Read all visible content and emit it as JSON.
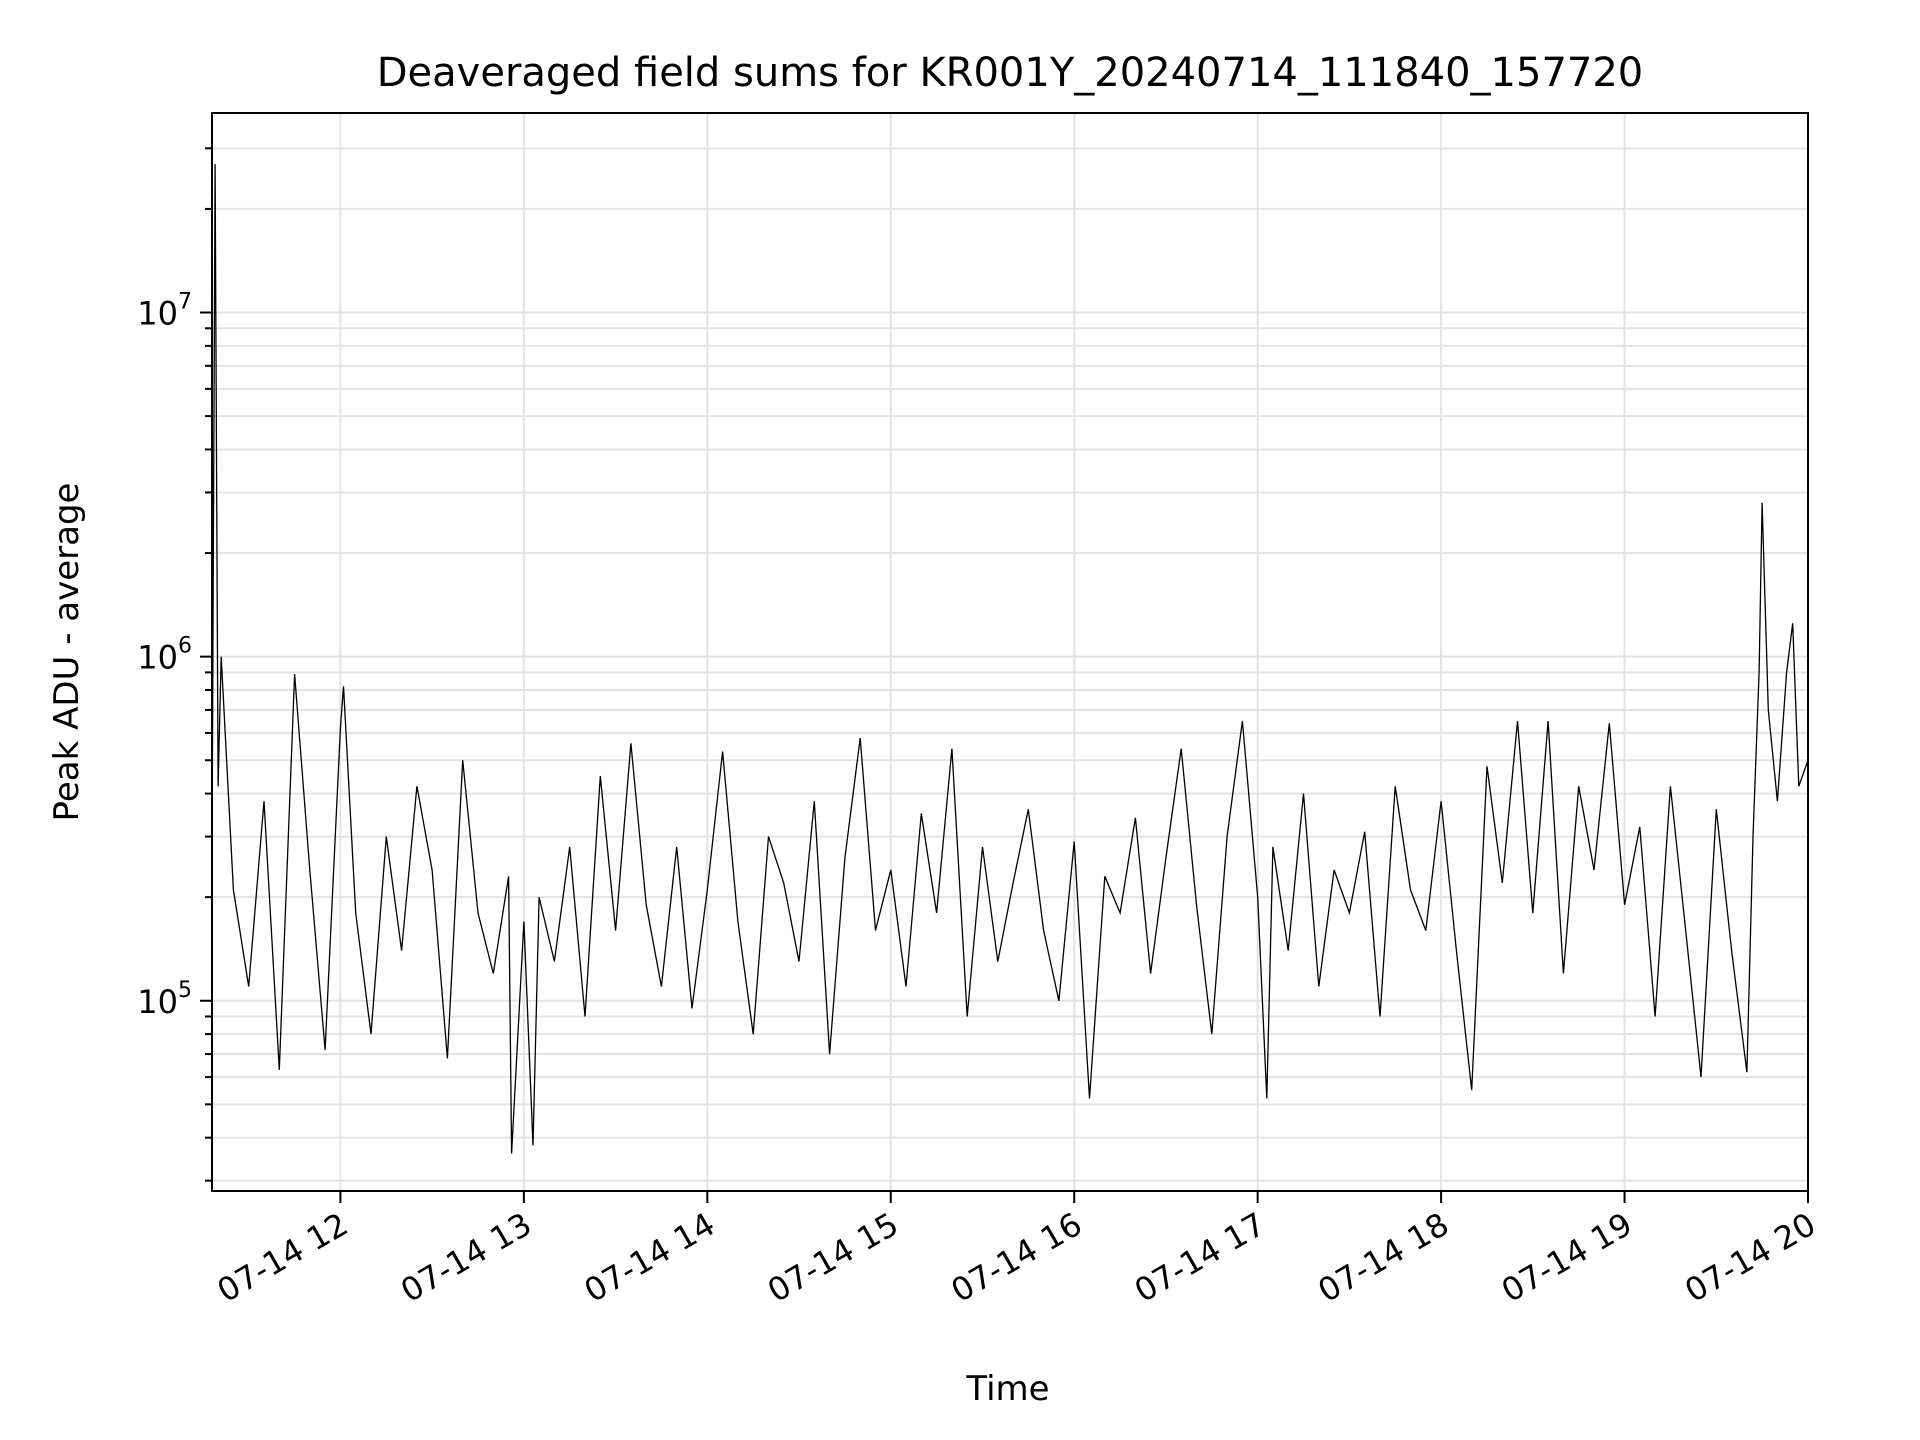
{
  "chart_data": {
    "type": "line",
    "title": "Deaveraged field sums for KR001Y_20240714_111840_157720",
    "xlabel": "Time",
    "ylabel": "Peak ADU - average",
    "x_range": [
      "07-14 11:18",
      "07-14 20:00"
    ],
    "y_range": [
      28000,
      38000000
    ],
    "y_scale": "log",
    "grid": true,
    "legend": "none",
    "line_color": "#000000",
    "x_ticks": [
      {
        "hour": 12,
        "label": "07-14 12"
      },
      {
        "hour": 13,
        "label": "07-14 13"
      },
      {
        "hour": 14,
        "label": "07-14 14"
      },
      {
        "hour": 15,
        "label": "07-14 15"
      },
      {
        "hour": 16,
        "label": "07-14 16"
      },
      {
        "hour": 17,
        "label": "07-14 17"
      },
      {
        "hour": 18,
        "label": "07-14 18"
      },
      {
        "hour": 19,
        "label": "07-14 19"
      },
      {
        "hour": 20,
        "label": "07-14 20"
      }
    ],
    "y_ticks": [
      {
        "value": 100000,
        "base": "10",
        "exp": "5"
      },
      {
        "value": 1000000,
        "base": "10",
        "exp": "6"
      },
      {
        "value": 10000000,
        "base": "10",
        "exp": "7"
      }
    ],
    "series": [
      {
        "points": [
          [
            "07-14 11:18",
            260000
          ],
          [
            "07-14 11:19",
            27000000
          ],
          [
            "07-14 11:20",
            420000
          ],
          [
            "07-14 11:21",
            1000000
          ],
          [
            "07-14 11:25",
            210000
          ],
          [
            "07-14 11:30",
            110000
          ],
          [
            "07-14 11:35",
            380000
          ],
          [
            "07-14 11:40",
            63000
          ],
          [
            "07-14 11:45",
            890000
          ],
          [
            "07-14 11:50",
            240000
          ],
          [
            "07-14 11:55",
            72000
          ],
          [
            "07-14 12:00",
            620000
          ],
          [
            "07-14 12:01",
            820000
          ],
          [
            "07-14 12:05",
            180000
          ],
          [
            "07-14 12:10",
            80000
          ],
          [
            "07-14 12:15",
            300000
          ],
          [
            "07-14 12:20",
            140000
          ],
          [
            "07-14 12:25",
            420000
          ],
          [
            "07-14 12:30",
            240000
          ],
          [
            "07-14 12:35",
            68000
          ],
          [
            "07-14 12:40",
            500000
          ],
          [
            "07-14 12:45",
            180000
          ],
          [
            "07-14 12:50",
            120000
          ],
          [
            "07-14 12:55",
            230000
          ],
          [
            "07-14 12:56",
            36000
          ],
          [
            "07-14 13:00",
            170000
          ],
          [
            "07-14 13:03",
            38000
          ],
          [
            "07-14 13:05",
            200000
          ],
          [
            "07-14 13:10",
            130000
          ],
          [
            "07-14 13:15",
            280000
          ],
          [
            "07-14 13:20",
            90000
          ],
          [
            "07-14 13:25",
            450000
          ],
          [
            "07-14 13:30",
            160000
          ],
          [
            "07-14 13:35",
            560000
          ],
          [
            "07-14 13:40",
            190000
          ],
          [
            "07-14 13:45",
            110000
          ],
          [
            "07-14 13:50",
            280000
          ],
          [
            "07-14 13:55",
            95000
          ],
          [
            "07-14 14:00",
            210000
          ],
          [
            "07-14 14:05",
            530000
          ],
          [
            "07-14 14:10",
            170000
          ],
          [
            "07-14 14:15",
            80000
          ],
          [
            "07-14 14:20",
            300000
          ],
          [
            "07-14 14:25",
            220000
          ],
          [
            "07-14 14:30",
            130000
          ],
          [
            "07-14 14:35",
            380000
          ],
          [
            "07-14 14:40",
            70000
          ],
          [
            "07-14 14:45",
            260000
          ],
          [
            "07-14 14:50",
            580000
          ],
          [
            "07-14 14:55",
            160000
          ],
          [
            "07-14 15:00",
            240000
          ],
          [
            "07-14 15:05",
            110000
          ],
          [
            "07-14 15:10",
            350000
          ],
          [
            "07-14 15:15",
            180000
          ],
          [
            "07-14 15:20",
            540000
          ],
          [
            "07-14 15:25",
            90000
          ],
          [
            "07-14 15:30",
            280000
          ],
          [
            "07-14 15:35",
            130000
          ],
          [
            "07-14 15:40",
            220000
          ],
          [
            "07-14 15:45",
            360000
          ],
          [
            "07-14 15:50",
            160000
          ],
          [
            "07-14 15:55",
            100000
          ],
          [
            "07-14 16:00",
            290000
          ],
          [
            "07-14 16:05",
            52000
          ],
          [
            "07-14 16:10",
            230000
          ],
          [
            "07-14 16:15",
            180000
          ],
          [
            "07-14 16:20",
            340000
          ],
          [
            "07-14 16:25",
            120000
          ],
          [
            "07-14 16:30",
            260000
          ],
          [
            "07-14 16:35",
            540000
          ],
          [
            "07-14 16:40",
            190000
          ],
          [
            "07-14 16:45",
            80000
          ],
          [
            "07-14 16:50",
            300000
          ],
          [
            "07-14 16:55",
            650000
          ],
          [
            "07-14 17:00",
            200000
          ],
          [
            "07-14 17:03",
            52000
          ],
          [
            "07-14 17:05",
            280000
          ],
          [
            "07-14 17:10",
            140000
          ],
          [
            "07-14 17:15",
            400000
          ],
          [
            "07-14 17:20",
            110000
          ],
          [
            "07-14 17:25",
            240000
          ],
          [
            "07-14 17:30",
            180000
          ],
          [
            "07-14 17:35",
            310000
          ],
          [
            "07-14 17:40",
            90000
          ],
          [
            "07-14 17:45",
            420000
          ],
          [
            "07-14 17:50",
            210000
          ],
          [
            "07-14 17:55",
            160000
          ],
          [
            "07-14 18:00",
            380000
          ],
          [
            "07-14 18:05",
            140000
          ],
          [
            "07-14 18:10",
            55000
          ],
          [
            "07-14 18:15",
            480000
          ],
          [
            "07-14 18:20",
            220000
          ],
          [
            "07-14 18:25",
            650000
          ],
          [
            "07-14 18:30",
            180000
          ],
          [
            "07-14 18:35",
            650000
          ],
          [
            "07-14 18:40",
            120000
          ],
          [
            "07-14 18:45",
            420000
          ],
          [
            "07-14 18:50",
            240000
          ],
          [
            "07-14 18:55",
            640000
          ],
          [
            "07-14 19:00",
            190000
          ],
          [
            "07-14 19:05",
            320000
          ],
          [
            "07-14 19:10",
            90000
          ],
          [
            "07-14 19:15",
            420000
          ],
          [
            "07-14 19:20",
            160000
          ],
          [
            "07-14 19:25",
            60000
          ],
          [
            "07-14 19:30",
            360000
          ],
          [
            "07-14 19:35",
            140000
          ],
          [
            "07-14 19:40",
            62000
          ],
          [
            "07-14 19:42",
            300000
          ],
          [
            "07-14 19:44",
            900000
          ],
          [
            "07-14 19:45",
            2800000
          ],
          [
            "07-14 19:47",
            700000
          ],
          [
            "07-14 19:50",
            380000
          ],
          [
            "07-14 19:53",
            900000
          ],
          [
            "07-14 19:55",
            1250000
          ],
          [
            "07-14 19:57",
            420000
          ],
          [
            "07-14 20:00",
            500000
          ]
        ]
      }
    ]
  }
}
